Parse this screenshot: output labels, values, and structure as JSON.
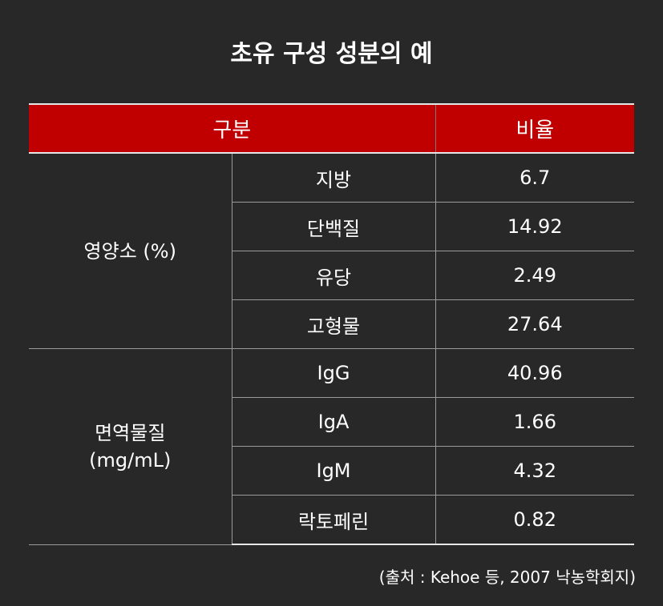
{
  "title": "초유 구성 성분의 예",
  "header": {
    "category": "구분",
    "ratio": "비율"
  },
  "groups": [
    {
      "label": "영양소 (%)",
      "rows": [
        {
          "item": "지방",
          "value": "6.7"
        },
        {
          "item": "단백질",
          "value": "14.92"
        },
        {
          "item": "유당",
          "value": "2.49"
        },
        {
          "item": "고형물",
          "value": "27.64"
        }
      ]
    },
    {
      "label_line1": "면역물질",
      "label_line2": "(mg/mL)",
      "rows": [
        {
          "item": "IgG",
          "value": "40.96"
        },
        {
          "item": "IgA",
          "value": "1.66"
        },
        {
          "item": "IgM",
          "value": "4.32"
        },
        {
          "item": "락토페린",
          "value": "0.82"
        }
      ]
    }
  ],
  "source": "(출처 : Kehoe 등, 2007 낙농학회지)",
  "colors": {
    "background": "#282828",
    "header_bg": "#c00000",
    "text": "#ffffff"
  }
}
